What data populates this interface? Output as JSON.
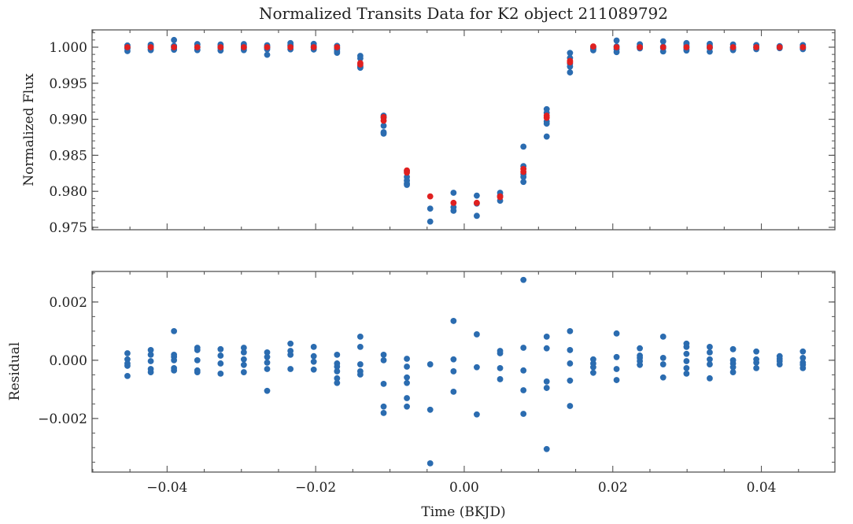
{
  "chart_data": [
    {
      "type": "scatter",
      "panel": "top",
      "title": "Normalized Transits Data for K2 object 211089792",
      "xlabel": "",
      "ylabel": "Normalized Flux",
      "xlim": [
        -0.0501,
        0.0499
      ],
      "ylim": [
        0.97467,
        1.0024
      ],
      "yticks": [
        1.0,
        0.995,
        0.99,
        0.985,
        0.98,
        0.975
      ],
      "ytick_labels": [
        "1.000",
        "0.995",
        "0.990",
        "0.985",
        "0.980",
        "0.975"
      ],
      "grid": false,
      "legend": null,
      "series": [
        {
          "name": "data",
          "color": "#2b6cb0",
          "groups": [
            {
              "x": -0.04534,
              "y": [
                1.00024,
                1.00003,
                0.99989,
                0.99981,
                0.99946
              ]
            },
            {
              "x": -0.0422,
              "y": [
                1.00035,
                1.00019,
                0.99997,
                0.9997,
                0.99959
              ]
            },
            {
              "x": -0.03907,
              "y": [
                1.001,
                1.00019,
                1.00011,
                1.0,
                0.99973,
                0.99965
              ]
            },
            {
              "x": -0.03593,
              "y": [
                1.00043,
                1.00035,
                1.0,
                0.99965,
                0.99959
              ]
            },
            {
              "x": -0.0328,
              "y": [
                1.00038,
                1.00016,
                0.99989,
                0.99954
              ]
            },
            {
              "x": -0.02967,
              "y": [
                1.00043,
                1.00027,
                1.00003,
                0.99984,
                0.99959
              ]
            },
            {
              "x": -0.02653,
              "y": [
                1.00027,
                1.00011,
                0.99992,
                0.9997,
                0.99895
              ]
            },
            {
              "x": -0.02339,
              "y": [
                1.00057,
                1.00032,
                1.00019,
                0.9997
              ]
            },
            {
              "x": -0.02026,
              "y": [
                1.00046,
                1.00014,
                0.99995,
                0.99968
              ]
            },
            {
              "x": -0.01712,
              "y": [
                1.00019,
                0.99989,
                0.99978,
                0.99962,
                0.99938,
                0.99922
              ]
            },
            {
              "x": -0.01399,
              "y": [
                0.9988,
                0.99845,
                0.99735,
                0.99725,
                0.99715
              ]
            },
            {
              "x": -0.01085,
              "y": [
                0.9905,
                0.9902,
                0.9891,
                0.9882,
                0.988
              ]
            },
            {
              "x": -0.00772,
              "y": [
                0.9828,
                0.982,
                0.9815,
                0.9811,
                0.9809
              ]
            },
            {
              "x": -0.00458,
              "y": [
                0.9776,
                0.9758
              ]
            },
            {
              "x": -0.00144,
              "y": [
                0.9798,
                0.9778,
                0.9773
              ]
            },
            {
              "x": 0.00169,
              "y": [
                0.9794,
                0.9783,
                0.9766
              ]
            },
            {
              "x": 0.00483,
              "y": [
                0.9798,
                0.9794,
                0.9787
              ]
            },
            {
              "x": 0.00797,
              "y": [
                0.9862,
                0.9835,
                0.9824,
                0.982,
                0.9813
              ]
            },
            {
              "x": 0.0111,
              "y": [
                0.9914,
                0.9909,
                0.9897,
                0.9894,
                0.9876
              ]
            },
            {
              "x": 0.01424,
              "y": [
                0.9992,
                0.9985,
                0.9977,
                0.9973,
                0.9965
              ]
            },
            {
              "x": 0.01737,
              "y": [
                1.00003,
                0.99989,
                0.99976,
                0.99957
              ]
            },
            {
              "x": 0.02051,
              "y": [
                1.00092,
                1.00011,
                0.9997,
                0.99932
              ]
            },
            {
              "x": 0.02364,
              "y": [
                1.00041,
                1.00016,
                1.00008,
                0.99997,
                0.99984
              ]
            },
            {
              "x": 0.02678,
              "y": [
                1.00081,
                1.00008,
                0.99986,
                0.99941
              ]
            },
            {
              "x": 0.02992,
              "y": [
                1.00057,
                1.00046,
                1.00022,
                0.99997,
                0.99973,
                0.99954
              ]
            },
            {
              "x": 0.03305,
              "y": [
                1.00046,
                1.00027,
                1.00003,
                0.99986,
                0.99938
              ]
            },
            {
              "x": 0.03619,
              "y": [
                1.00038,
                1.0,
                0.99989,
                0.99976,
                0.99959
              ]
            },
            {
              "x": 0.03932,
              "y": [
                1.0003,
                1.00003,
                0.99992,
                0.99973
              ]
            },
            {
              "x": 0.04246,
              "y": [
                1.00014,
                1.00005,
                0.99997,
                0.99986
              ]
            },
            {
              "x": 0.04559,
              "y": [
                1.0003,
                1.00008,
                0.99992,
                0.99984,
                0.99973
              ]
            }
          ]
        },
        {
          "name": "model",
          "color": "#e02020",
          "groups": [
            {
              "x": -0.04534,
              "y": [
                1.0
              ]
            },
            {
              "x": -0.0422,
              "y": [
                1.0
              ]
            },
            {
              "x": -0.03907,
              "y": [
                1.0
              ]
            },
            {
              "x": -0.03593,
              "y": [
                1.0
              ]
            },
            {
              "x": -0.0328,
              "y": [
                1.0
              ]
            },
            {
              "x": -0.02967,
              "y": [
                1.0
              ]
            },
            {
              "x": -0.02653,
              "y": [
                1.0
              ]
            },
            {
              "x": -0.02339,
              "y": [
                1.0
              ]
            },
            {
              "x": -0.02026,
              "y": [
                1.0
              ]
            },
            {
              "x": -0.01712,
              "y": [
                1.0
              ]
            },
            {
              "x": -0.01399,
              "y": [
                0.9978,
                0.9976
              ]
            },
            {
              "x": -0.01085,
              "y": [
                0.9903,
                0.9898
              ]
            },
            {
              "x": -0.00772,
              "y": [
                0.9829,
                0.9826
              ]
            },
            {
              "x": -0.00458,
              "y": [
                0.9793
              ]
            },
            {
              "x": -0.00144,
              "y": [
                0.9784
              ]
            },
            {
              "x": 0.00169,
              "y": [
                0.9784
              ]
            },
            {
              "x": 0.00483,
              "y": [
                0.9793,
                0.9792
              ]
            },
            {
              "x": 0.00797,
              "y": [
                0.9831,
                0.9827
              ]
            },
            {
              "x": 0.0111,
              "y": [
                0.9905,
                0.9902
              ]
            },
            {
              "x": 0.01424,
              "y": [
                0.9981,
                0.9979
              ]
            },
            {
              "x": 0.01737,
              "y": [
                1.0001
              ]
            },
            {
              "x": 0.02051,
              "y": [
                1.0
              ]
            },
            {
              "x": 0.02364,
              "y": [
                1.0
              ]
            },
            {
              "x": 0.02678,
              "y": [
                1.0
              ]
            },
            {
              "x": 0.02992,
              "y": [
                1.0
              ]
            },
            {
              "x": 0.03305,
              "y": [
                1.0
              ]
            },
            {
              "x": 0.03619,
              "y": [
                1.0
              ]
            },
            {
              "x": 0.03932,
              "y": [
                1.0
              ]
            },
            {
              "x": 0.04246,
              "y": [
                1.0
              ]
            },
            {
              "x": 0.04559,
              "y": [
                1.0
              ]
            }
          ]
        }
      ]
    },
    {
      "type": "scatter",
      "panel": "bottom",
      "title": "",
      "xlabel": "Time (BKJD)",
      "ylabel": "Residual",
      "xlim": [
        -0.0501,
        0.0499
      ],
      "ylim": [
        -0.00384,
        0.00305
      ],
      "xticks": [
        -0.04,
        -0.02,
        0.0,
        0.02,
        0.04
      ],
      "xtick_labels": [
        "−0.04",
        "−0.02",
        "0.00",
        "0.02",
        "0.04"
      ],
      "yticks": [
        0.002,
        0.0,
        -0.002
      ],
      "ytick_labels": [
        "0.002",
        "0.000",
        "−0.002"
      ],
      "grid": false,
      "legend": null,
      "series": [
        {
          "name": "residual",
          "color": "#2b6cb0",
          "groups": [
            {
              "x": -0.04534,
              "y": [
                0.00024,
                3e-05,
                -0.00011,
                -0.00019,
                -0.00054
              ]
            },
            {
              "x": -0.0422,
              "y": [
                0.00035,
                0.00019,
                -3e-05,
                -0.0003,
                -0.00041
              ]
            },
            {
              "x": -0.03907,
              "y": [
                0.001,
                0.00019,
                0.00011,
                0.0,
                -0.00027,
                -0.00035
              ]
            },
            {
              "x": -0.03593,
              "y": [
                0.00043,
                0.00035,
                0.0,
                -0.00035,
                -0.00041
              ]
            },
            {
              "x": -0.0328,
              "y": [
                0.00038,
                0.00016,
                -0.00011,
                -0.00046
              ]
            },
            {
              "x": -0.02967,
              "y": [
                0.00043,
                0.00027,
                3e-05,
                -0.00016,
                -0.00041
              ]
            },
            {
              "x": -0.02653,
              "y": [
                0.00027,
                0.00011,
                -8e-05,
                -0.0003,
                -0.00105
              ]
            },
            {
              "x": -0.02339,
              "y": [
                0.00057,
                0.00032,
                0.00019,
                -0.0003
              ]
            },
            {
              "x": -0.02026,
              "y": [
                0.00046,
                0.00014,
                -5e-05,
                -0.00032
              ]
            },
            {
              "x": -0.01712,
              "y": [
                0.00019,
                -0.00011,
                -0.00022,
                -0.00038,
                -0.00062,
                -0.00078
              ]
            },
            {
              "x": -0.01399,
              "y": [
                0.00081,
                0.00046,
                -0.00014,
                -0.00038,
                -0.00049
              ]
            },
            {
              "x": -0.01085,
              "y": [
                0.00019,
                0.0,
                -0.00081,
                -0.00159,
                -0.00181
              ]
            },
            {
              "x": -0.00772,
              "y": [
                5e-05,
                -0.00022,
                -0.00059,
                -0.00078,
                -0.0013,
                -0.00159
              ]
            },
            {
              "x": -0.00458,
              "y": [
                -0.00014,
                -0.0017,
                -0.00354
              ]
            },
            {
              "x": -0.00144,
              "y": [
                0.00135,
                3e-05,
                -0.00038,
                -0.00108
              ]
            },
            {
              "x": 0.00169,
              "y": [
                0.00089,
                -0.00024,
                -0.00186
              ]
            },
            {
              "x": 0.00483,
              "y": [
                0.00032,
                0.00024,
                -0.00027,
                -0.00065
              ]
            },
            {
              "x": 0.00797,
              "y": [
                0.00276,
                0.00043,
                -0.00035,
                -0.00103,
                -0.00184
              ]
            },
            {
              "x": 0.0111,
              "y": [
                0.00081,
                0.00041,
                -0.00073,
                -0.00095,
                -0.00305
              ]
            },
            {
              "x": 0.01424,
              "y": [
                0.001,
                0.00035,
                -0.00011,
                -0.0007,
                -0.00157
              ]
            },
            {
              "x": 0.01737,
              "y": [
                3e-05,
                -0.00011,
                -0.00024,
                -0.00043
              ]
            },
            {
              "x": 0.02051,
              "y": [
                0.00092,
                0.00011,
                -0.0003,
                -0.00068
              ]
            },
            {
              "x": 0.02364,
              "y": [
                0.00041,
                0.00016,
                8e-05,
                -3e-05,
                -0.00016
              ]
            },
            {
              "x": 0.02678,
              "y": [
                0.00081,
                8e-05,
                -0.00014,
                -0.00059
              ]
            },
            {
              "x": 0.02992,
              "y": [
                0.00057,
                0.00046,
                0.00022,
                -3e-05,
                -0.00027,
                -0.00046
              ]
            },
            {
              "x": 0.03305,
              "y": [
                0.00046,
                0.00027,
                3e-05,
                -0.00014,
                -0.00062
              ]
            },
            {
              "x": 0.03619,
              "y": [
                0.00038,
                0.0,
                -0.00011,
                -0.00024,
                -0.00041
              ]
            },
            {
              "x": 0.03932,
              "y": [
                0.0003,
                3e-05,
                -8e-05,
                -0.00027
              ]
            },
            {
              "x": 0.04246,
              "y": [
                0.00014,
                5e-05,
                -3e-05,
                -0.00014
              ]
            },
            {
              "x": 0.04559,
              "y": [
                0.0003,
                8e-05,
                -8e-05,
                -0.00016,
                -0.00027
              ]
            }
          ]
        }
      ]
    }
  ]
}
